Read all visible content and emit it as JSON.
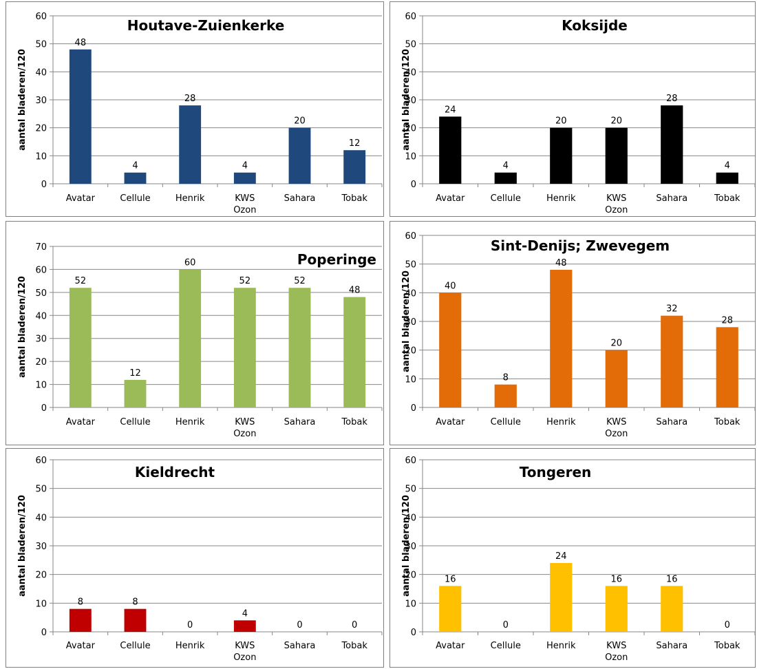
{
  "chart_data": [
    {
      "type": "bar",
      "title": "Houtave-Zuienkerke",
      "ylabel": "aantal bladeren/120",
      "categories": [
        "Avatar",
        "Cellule",
        "Henrik",
        "KWS Ozon",
        "Sahara",
        "Tobak"
      ],
      "values": [
        48,
        4,
        28,
        4,
        20,
        12
      ],
      "ylim": [
        0,
        60
      ],
      "yticks": [
        0,
        10,
        20,
        30,
        40,
        50,
        60
      ],
      "color": "#1f497d",
      "grid": true
    },
    {
      "type": "bar",
      "title": "Koksijde",
      "ylabel": "aantal bladeren/120",
      "categories": [
        "Avatar",
        "Cellule",
        "Henrik",
        "KWS Ozon",
        "Sahara",
        "Tobak"
      ],
      "values": [
        24,
        4,
        20,
        20,
        28,
        4
      ],
      "ylim": [
        0,
        60
      ],
      "yticks": [
        0,
        10,
        20,
        30,
        40,
        50,
        60
      ],
      "color": "#000000",
      "grid": true
    },
    {
      "type": "bar",
      "title": "Poperinge",
      "ylabel": "aantal bladeren/120",
      "categories": [
        "Avatar",
        "Cellule",
        "Henrik",
        "KWS Ozon",
        "Sahara",
        "Tobak"
      ],
      "values": [
        52,
        12,
        60,
        52,
        52,
        48
      ],
      "ylim": [
        0,
        70
      ],
      "yticks": [
        0,
        10,
        20,
        30,
        40,
        50,
        60,
        70
      ],
      "color": "#9bbb59",
      "grid": true
    },
    {
      "type": "bar",
      "title": "Sint-Denijs; Zwevegem",
      "ylabel": "aantal bladeren/120",
      "categories": [
        "Avatar",
        "Cellule",
        "Henrik",
        "KWS Ozon",
        "Sahara",
        "Tobak"
      ],
      "values": [
        40,
        8,
        48,
        20,
        32,
        28
      ],
      "ylim": [
        0,
        60
      ],
      "yticks": [
        0,
        10,
        20,
        30,
        40,
        50,
        60
      ],
      "color": "#e36c09",
      "grid": true
    },
    {
      "type": "bar",
      "title": "Kieldrecht",
      "ylabel": "aantal bladeren/120",
      "categories": [
        "Avatar",
        "Cellule",
        "Henrik",
        "KWS Ozon",
        "Sahara",
        "Tobak"
      ],
      "values": [
        8,
        8,
        0,
        4,
        0,
        0
      ],
      "ylim": [
        0,
        60
      ],
      "yticks": [
        0,
        10,
        20,
        30,
        40,
        50,
        60
      ],
      "color": "#c00000",
      "grid": true
    },
    {
      "type": "bar",
      "title": "Tongeren",
      "ylabel": "aantal bladeren/120",
      "categories": [
        "Avatar",
        "Cellule",
        "Henrik",
        "KWS Ozon",
        "Sahara",
        "Tobak"
      ],
      "values": [
        16,
        0,
        24,
        16,
        16,
        0
      ],
      "ylim": [
        0,
        60
      ],
      "yticks": [
        0,
        10,
        20,
        30,
        40,
        50,
        60
      ],
      "color": "#ffc000",
      "grid": true
    }
  ]
}
